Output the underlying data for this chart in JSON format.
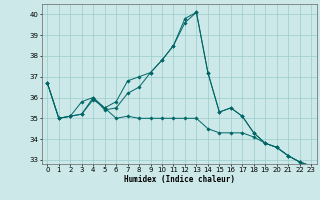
{
  "xlabel": "Humidex (Indice chaleur)",
  "ylabel": "",
  "background_color": "#cce8e8",
  "grid_color": "#99cccc",
  "line_color": "#006666",
  "xlim": [
    -0.5,
    23.5
  ],
  "ylim": [
    32.8,
    40.5
  ],
  "yticks": [
    33,
    34,
    35,
    36,
    37,
    38,
    39,
    40
  ],
  "xticks": [
    0,
    1,
    2,
    3,
    4,
    5,
    6,
    7,
    8,
    9,
    10,
    11,
    12,
    13,
    14,
    15,
    16,
    17,
    18,
    19,
    20,
    21,
    22,
    23
  ],
  "series": [
    [
      36.7,
      35.0,
      35.1,
      35.2,
      35.9,
      35.5,
      35.0,
      35.1,
      35.0,
      35.0,
      35.0,
      35.0,
      35.0,
      35.0,
      34.5,
      34.3,
      34.3,
      34.3,
      34.1,
      33.8,
      33.6,
      33.2,
      32.9,
      32.7
    ],
    [
      36.7,
      35.0,
      35.1,
      35.8,
      36.0,
      35.4,
      35.5,
      36.2,
      36.5,
      37.2,
      37.8,
      38.5,
      39.6,
      40.1,
      37.2,
      35.3,
      35.5,
      35.1,
      34.3,
      33.8,
      33.6,
      33.2,
      32.9,
      32.7
    ],
    [
      36.7,
      35.0,
      35.1,
      35.2,
      36.0,
      35.5,
      35.8,
      36.8,
      37.0,
      37.2,
      37.8,
      38.5,
      39.8,
      40.1,
      37.2,
      35.3,
      35.5,
      35.1,
      34.3,
      33.8,
      33.6,
      33.2,
      32.9,
      32.7
    ]
  ]
}
